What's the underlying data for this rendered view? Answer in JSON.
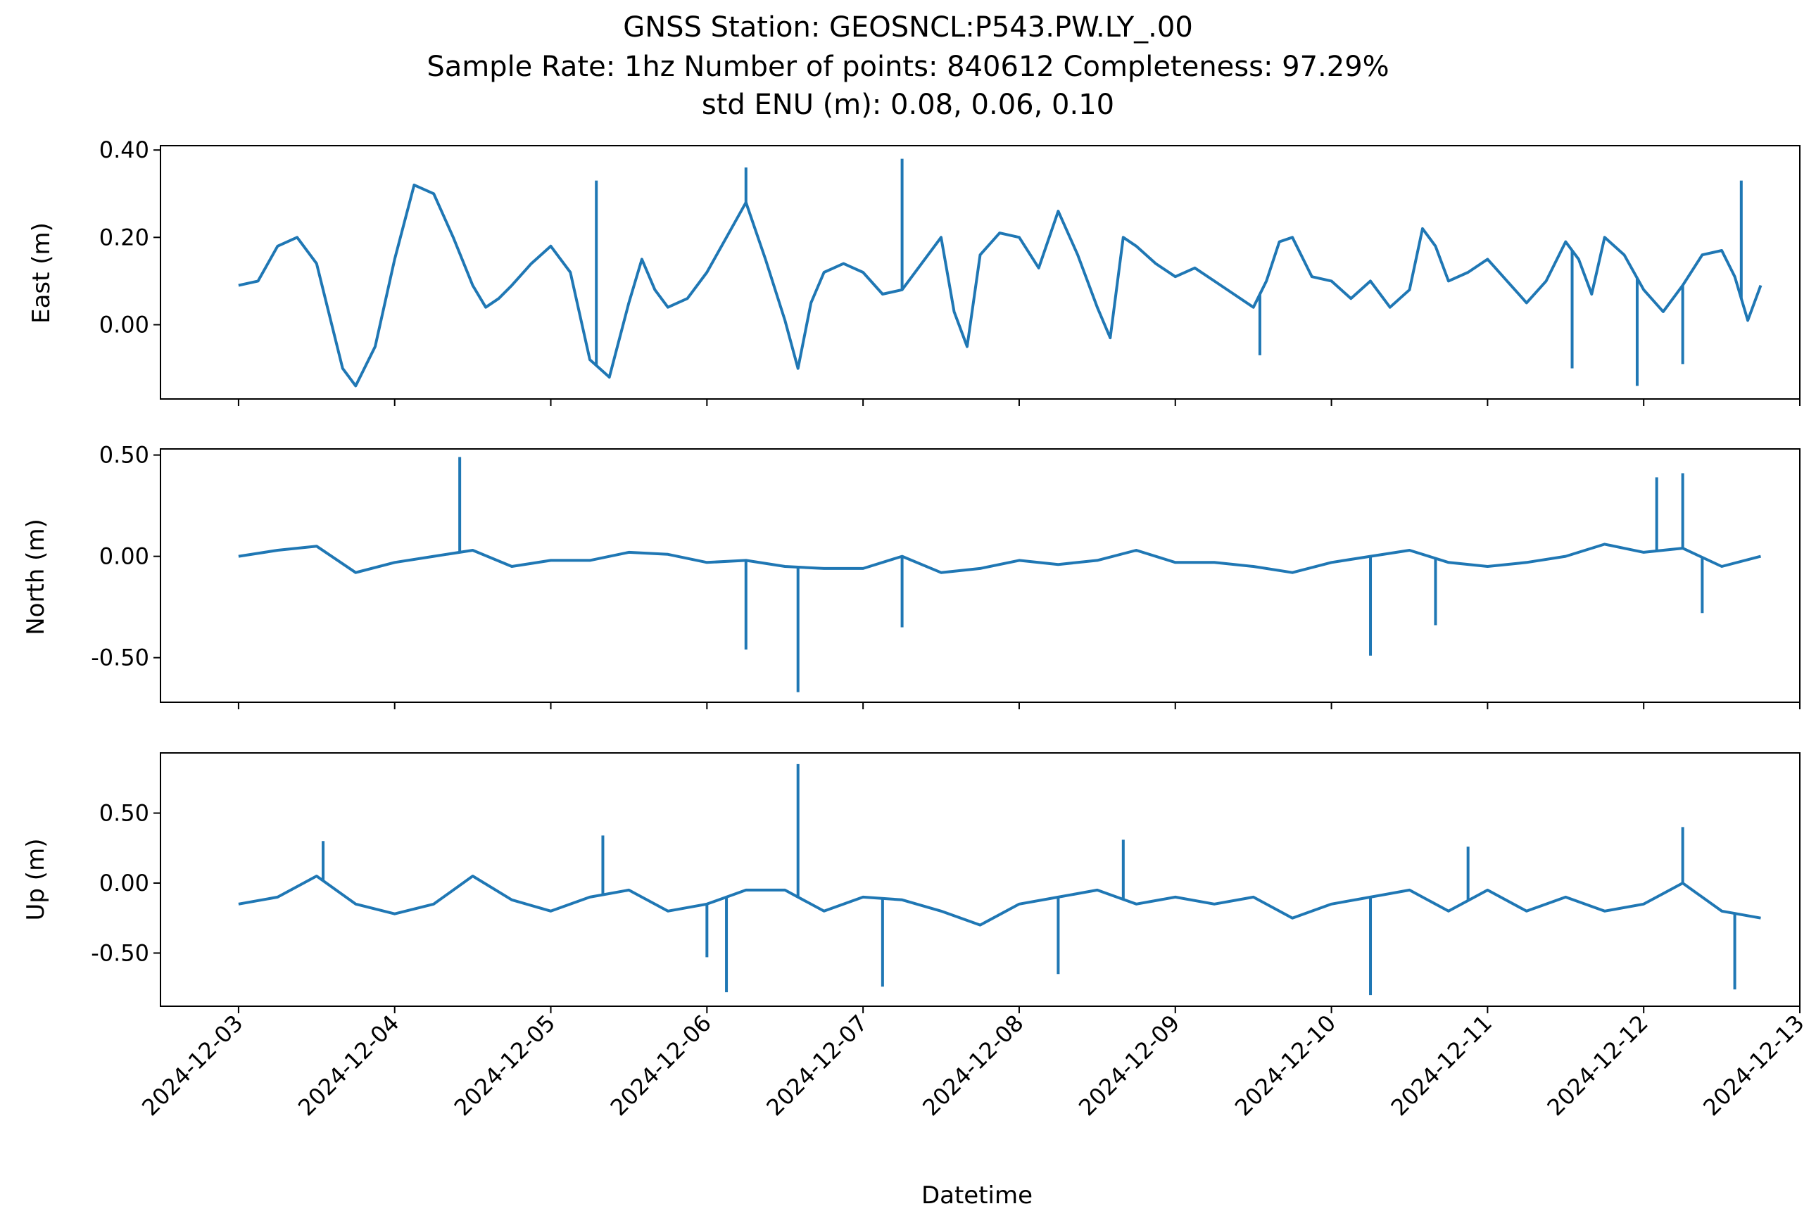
{
  "chart_data": {
    "type": "line",
    "title_lines": [
      "GNSS Station: GEOSNCL:P543.PW.LY_.00",
      "Sample Rate: 1hz   Number of points: 840612    Completeness:  97.29%",
      "std ENU (m):  0.08, 0.06, 0.10"
    ],
    "xlabel": "Datetime",
    "x_ticks": [
      "2024-12-03",
      "2024-12-04",
      "2024-12-05",
      "2024-12-06",
      "2024-12-07",
      "2024-12-08",
      "2024-12-09",
      "2024-12-10",
      "2024-12-11",
      "2024-12-12",
      "2024-12-13"
    ],
    "xlim": [
      "2024-12-02T12:00",
      "2024-12-13T00:00"
    ],
    "series_color": "#1f77b4",
    "subplots": [
      {
        "ylabel": "East (m)",
        "ylim": [
          -0.17,
          0.41
        ],
        "y_ticks": [
          0.0,
          0.2,
          0.4
        ],
        "y_tick_labels": [
          "0.00",
          "0.20",
          "0.40"
        ],
        "x": [
          "2024-12-03T00:00",
          "2024-12-03T03:00",
          "2024-12-03T06:00",
          "2024-12-03T09:00",
          "2024-12-03T12:00",
          "2024-12-03T14:00",
          "2024-12-03T16:00",
          "2024-12-03T18:00",
          "2024-12-03T21:00",
          "2024-12-04T00:00",
          "2024-12-04T03:00",
          "2024-12-04T06:00",
          "2024-12-04T09:00",
          "2024-12-04T12:00",
          "2024-12-04T14:00",
          "2024-12-04T16:00",
          "2024-12-04T18:00",
          "2024-12-04T21:00",
          "2024-12-05T00:00",
          "2024-12-05T03:00",
          "2024-12-05T06:00",
          "2024-12-05T09:00",
          "2024-12-05T12:00",
          "2024-12-05T14:00",
          "2024-12-05T16:00",
          "2024-12-05T18:00",
          "2024-12-05T21:00",
          "2024-12-06T00:00",
          "2024-12-06T03:00",
          "2024-12-06T06:00",
          "2024-12-06T09:00",
          "2024-12-06T12:00",
          "2024-12-06T14:00",
          "2024-12-06T16:00",
          "2024-12-06T18:00",
          "2024-12-06T21:00",
          "2024-12-07T00:00",
          "2024-12-07T03:00",
          "2024-12-07T06:00",
          "2024-12-07T09:00",
          "2024-12-07T12:00",
          "2024-12-07T14:00",
          "2024-12-07T16:00",
          "2024-12-07T18:00",
          "2024-12-07T21:00",
          "2024-12-08T00:00",
          "2024-12-08T03:00",
          "2024-12-08T06:00",
          "2024-12-08T09:00",
          "2024-12-08T12:00",
          "2024-12-08T14:00",
          "2024-12-08T16:00",
          "2024-12-08T18:00",
          "2024-12-08T21:00",
          "2024-12-09T00:00",
          "2024-12-09T03:00",
          "2024-12-09T06:00",
          "2024-12-09T09:00",
          "2024-12-09T12:00",
          "2024-12-09T14:00",
          "2024-12-09T16:00",
          "2024-12-09T18:00",
          "2024-12-09T21:00",
          "2024-12-10T00:00",
          "2024-12-10T03:00",
          "2024-12-10T06:00",
          "2024-12-10T09:00",
          "2024-12-10T12:00",
          "2024-12-10T14:00",
          "2024-12-10T16:00",
          "2024-12-10T18:00",
          "2024-12-10T21:00",
          "2024-12-11T00:00",
          "2024-12-11T03:00",
          "2024-12-11T06:00",
          "2024-12-11T09:00",
          "2024-12-11T12:00",
          "2024-12-11T14:00",
          "2024-12-11T16:00",
          "2024-12-11T18:00",
          "2024-12-11T21:00",
          "2024-12-12T00:00",
          "2024-12-12T03:00",
          "2024-12-12T06:00",
          "2024-12-12T09:00",
          "2024-12-12T12:00",
          "2024-12-12T14:00",
          "2024-12-12T16:00",
          "2024-12-12T18:00"
        ],
        "y": [
          0.09,
          0.1,
          0.18,
          0.2,
          0.14,
          0.02,
          -0.1,
          -0.14,
          -0.05,
          0.15,
          0.32,
          0.3,
          0.2,
          0.09,
          0.04,
          0.06,
          0.09,
          0.14,
          0.18,
          0.12,
          -0.08,
          -0.12,
          0.05,
          0.15,
          0.08,
          0.04,
          0.06,
          0.12,
          0.2,
          0.28,
          0.15,
          0.01,
          -0.1,
          0.05,
          0.12,
          0.14,
          0.12,
          0.07,
          0.08,
          0.14,
          0.2,
          0.03,
          -0.05,
          0.16,
          0.21,
          0.2,
          0.13,
          0.26,
          0.16,
          0.04,
          -0.03,
          0.2,
          0.18,
          0.14,
          0.11,
          0.13,
          0.1,
          0.07,
          0.04,
          0.1,
          0.19,
          0.2,
          0.11,
          0.1,
          0.06,
          0.1,
          0.04,
          0.08,
          0.22,
          0.18,
          0.1,
          0.12,
          0.15,
          0.1,
          0.05,
          0.1,
          0.19,
          0.15,
          0.07,
          0.2,
          0.16,
          0.08,
          0.03,
          0.09,
          0.16,
          0.17,
          0.11,
          0.01,
          0.09
        ],
        "spikes": [
          {
            "x": "2024-12-06T06:00",
            "y": 0.36
          },
          {
            "x": "2024-12-07T06:00",
            "y": 0.38
          },
          {
            "x": "2024-12-05T07:00",
            "y": 0.33
          },
          {
            "x": "2024-12-06T14:00",
            "y": -0.1
          },
          {
            "x": "2024-12-09T13:00",
            "y": -0.07
          },
          {
            "x": "2024-12-11T13:00",
            "y": -0.1
          },
          {
            "x": "2024-12-11T23:00",
            "y": -0.14
          },
          {
            "x": "2024-12-12T06:00",
            "y": -0.09
          },
          {
            "x": "2024-12-12T15:00",
            "y": 0.33
          }
        ]
      },
      {
        "ylabel": "North (m)",
        "ylim": [
          -0.72,
          0.53
        ],
        "y_ticks": [
          -0.5,
          0.0,
          0.5
        ],
        "y_tick_labels": [
          "-0.50",
          "0.00",
          "0.50"
        ],
        "x": [
          "2024-12-03T00:00",
          "2024-12-03T06:00",
          "2024-12-03T12:00",
          "2024-12-03T18:00",
          "2024-12-04T00:00",
          "2024-12-04T06:00",
          "2024-12-04T12:00",
          "2024-12-04T18:00",
          "2024-12-05T00:00",
          "2024-12-05T06:00",
          "2024-12-05T12:00",
          "2024-12-05T18:00",
          "2024-12-06T00:00",
          "2024-12-06T06:00",
          "2024-12-06T12:00",
          "2024-12-06T18:00",
          "2024-12-07T00:00",
          "2024-12-07T06:00",
          "2024-12-07T12:00",
          "2024-12-07T18:00",
          "2024-12-08T00:00",
          "2024-12-08T06:00",
          "2024-12-08T12:00",
          "2024-12-08T18:00",
          "2024-12-09T00:00",
          "2024-12-09T06:00",
          "2024-12-09T12:00",
          "2024-12-09T18:00",
          "2024-12-10T00:00",
          "2024-12-10T06:00",
          "2024-12-10T12:00",
          "2024-12-10T18:00",
          "2024-12-11T00:00",
          "2024-12-11T06:00",
          "2024-12-11T12:00",
          "2024-12-11T18:00",
          "2024-12-12T00:00",
          "2024-12-12T06:00",
          "2024-12-12T12:00",
          "2024-12-12T18:00"
        ],
        "y": [
          0.0,
          0.03,
          0.05,
          -0.08,
          -0.03,
          0.0,
          0.03,
          -0.05,
          -0.02,
          -0.02,
          0.02,
          0.01,
          -0.03,
          -0.02,
          -0.05,
          -0.06,
          -0.06,
          0.0,
          -0.08,
          -0.06,
          -0.02,
          -0.04,
          -0.02,
          0.03,
          -0.03,
          -0.03,
          -0.05,
          -0.08,
          -0.03,
          0.0,
          0.03,
          -0.03,
          -0.05,
          -0.03,
          0.0,
          0.06,
          0.02,
          0.04,
          -0.05,
          0.0
        ],
        "spikes": [
          {
            "x": "2024-12-04T10:00",
            "y": 0.49
          },
          {
            "x": "2024-12-06T06:00",
            "y": -0.46
          },
          {
            "x": "2024-12-06T14:00",
            "y": -0.67
          },
          {
            "x": "2024-12-07T06:00",
            "y": -0.35
          },
          {
            "x": "2024-12-10T06:00",
            "y": -0.49
          },
          {
            "x": "2024-12-10T16:00",
            "y": -0.34
          },
          {
            "x": "2024-12-12T02:00",
            "y": 0.39
          },
          {
            "x": "2024-12-12T06:00",
            "y": 0.41
          },
          {
            "x": "2024-12-12T09:00",
            "y": -0.28
          }
        ]
      },
      {
        "ylabel": "Up (m)",
        "ylim": [
          -0.88,
          0.93
        ],
        "y_ticks": [
          -0.5,
          0.0,
          0.5
        ],
        "y_tick_labels": [
          "-0.50",
          "0.00",
          "0.50"
        ],
        "x": [
          "2024-12-03T00:00",
          "2024-12-03T06:00",
          "2024-12-03T12:00",
          "2024-12-03T18:00",
          "2024-12-04T00:00",
          "2024-12-04T06:00",
          "2024-12-04T12:00",
          "2024-12-04T18:00",
          "2024-12-05T00:00",
          "2024-12-05T06:00",
          "2024-12-05T12:00",
          "2024-12-05T18:00",
          "2024-12-06T00:00",
          "2024-12-06T06:00",
          "2024-12-06T12:00",
          "2024-12-06T18:00",
          "2024-12-07T00:00",
          "2024-12-07T06:00",
          "2024-12-07T12:00",
          "2024-12-07T18:00",
          "2024-12-08T00:00",
          "2024-12-08T06:00",
          "2024-12-08T12:00",
          "2024-12-08T18:00",
          "2024-12-09T00:00",
          "2024-12-09T06:00",
          "2024-12-09T12:00",
          "2024-12-09T18:00",
          "2024-12-10T00:00",
          "2024-12-10T06:00",
          "2024-12-10T12:00",
          "2024-12-10T18:00",
          "2024-12-11T00:00",
          "2024-12-11T06:00",
          "2024-12-11T12:00",
          "2024-12-11T18:00",
          "2024-12-12T00:00",
          "2024-12-12T06:00",
          "2024-12-12T12:00",
          "2024-12-12T18:00"
        ],
        "y": [
          -0.15,
          -0.1,
          0.05,
          -0.15,
          -0.22,
          -0.15,
          0.05,
          -0.12,
          -0.2,
          -0.1,
          -0.05,
          -0.2,
          -0.15,
          -0.05,
          -0.05,
          -0.2,
          -0.1,
          -0.12,
          -0.2,
          -0.3,
          -0.15,
          -0.1,
          -0.05,
          -0.15,
          -0.1,
          -0.15,
          -0.1,
          -0.25,
          -0.15,
          -0.1,
          -0.05,
          -0.2,
          -0.05,
          -0.2,
          -0.1,
          -0.2,
          -0.15,
          0.0,
          -0.2,
          -0.25
        ],
        "spikes": [
          {
            "x": "2024-12-06T14:00",
            "y": 0.85
          },
          {
            "x": "2024-12-06T03:00",
            "y": -0.78
          },
          {
            "x": "2024-12-07T03:00",
            "y": -0.74
          },
          {
            "x": "2024-12-08T06:00",
            "y": -0.65
          },
          {
            "x": "2024-12-10T06:00",
            "y": -0.8
          },
          {
            "x": "2024-12-12T14:00",
            "y": -0.76
          },
          {
            "x": "2024-12-12T06:00",
            "y": 0.4
          },
          {
            "x": "2024-12-05T08:00",
            "y": 0.34
          },
          {
            "x": "2024-12-08T16:00",
            "y": 0.31
          },
          {
            "x": "2024-12-10T21:00",
            "y": 0.26
          },
          {
            "x": "2024-12-03T13:00",
            "y": 0.3
          },
          {
            "x": "2024-12-06T00:00",
            "y": -0.53
          }
        ]
      }
    ]
  }
}
